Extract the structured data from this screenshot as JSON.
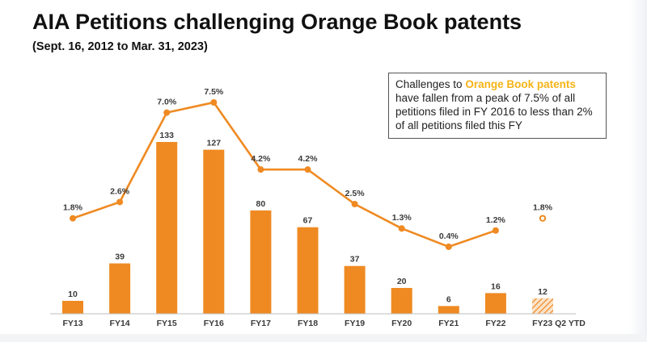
{
  "title": "AIA Petitions challenging Orange Book patents",
  "subtitle": "(Sept. 16, 2012 to Mar. 31, 2023)",
  "callout": {
    "prefix": "Challenges to ",
    "highlight": "Orange Book patents",
    "rest": "have fallen from a peak of 7.5% of all petitions filed in FY 2016 to less than 2% of all petitions filed this FY"
  },
  "colors": {
    "bar": "#EF8A22",
    "line": "#EF8A22",
    "highlight": "#F5B316",
    "axis": "#bdbdbd",
    "text": "#3a3a3a"
  },
  "chart_data": {
    "type": "bar",
    "categories": [
      "FY13",
      "FY14",
      "FY15",
      "FY16",
      "FY17",
      "FY18",
      "FY19",
      "FY20",
      "FY21",
      "FY22",
      "FY23 Q2 YTD"
    ],
    "series": [
      {
        "type": "bar",
        "values": [
          10,
          39,
          133,
          127,
          80,
          67,
          37,
          20,
          6,
          16,
          12
        ],
        "labels": [
          "10",
          "39",
          "133",
          "127",
          "80",
          "67",
          "37",
          "20",
          "6",
          "16",
          "12"
        ],
        "hatched_last": true
      },
      {
        "type": "line",
        "values": [
          1.8,
          2.6,
          7.0,
          7.5,
          4.2,
          4.2,
          2.5,
          1.3,
          0.4,
          1.2,
          1.8
        ],
        "labels": [
          "1.8%",
          "2.6%",
          "7.0%",
          "7.5%",
          "4.2%",
          "4.2%",
          "2.5%",
          "1.3%",
          "0.4%",
          "1.2%",
          "1.8%"
        ],
        "last_point_separate": true
      }
    ],
    "xlabel": "",
    "ylabel": "",
    "grid": false,
    "legend": "none"
  }
}
